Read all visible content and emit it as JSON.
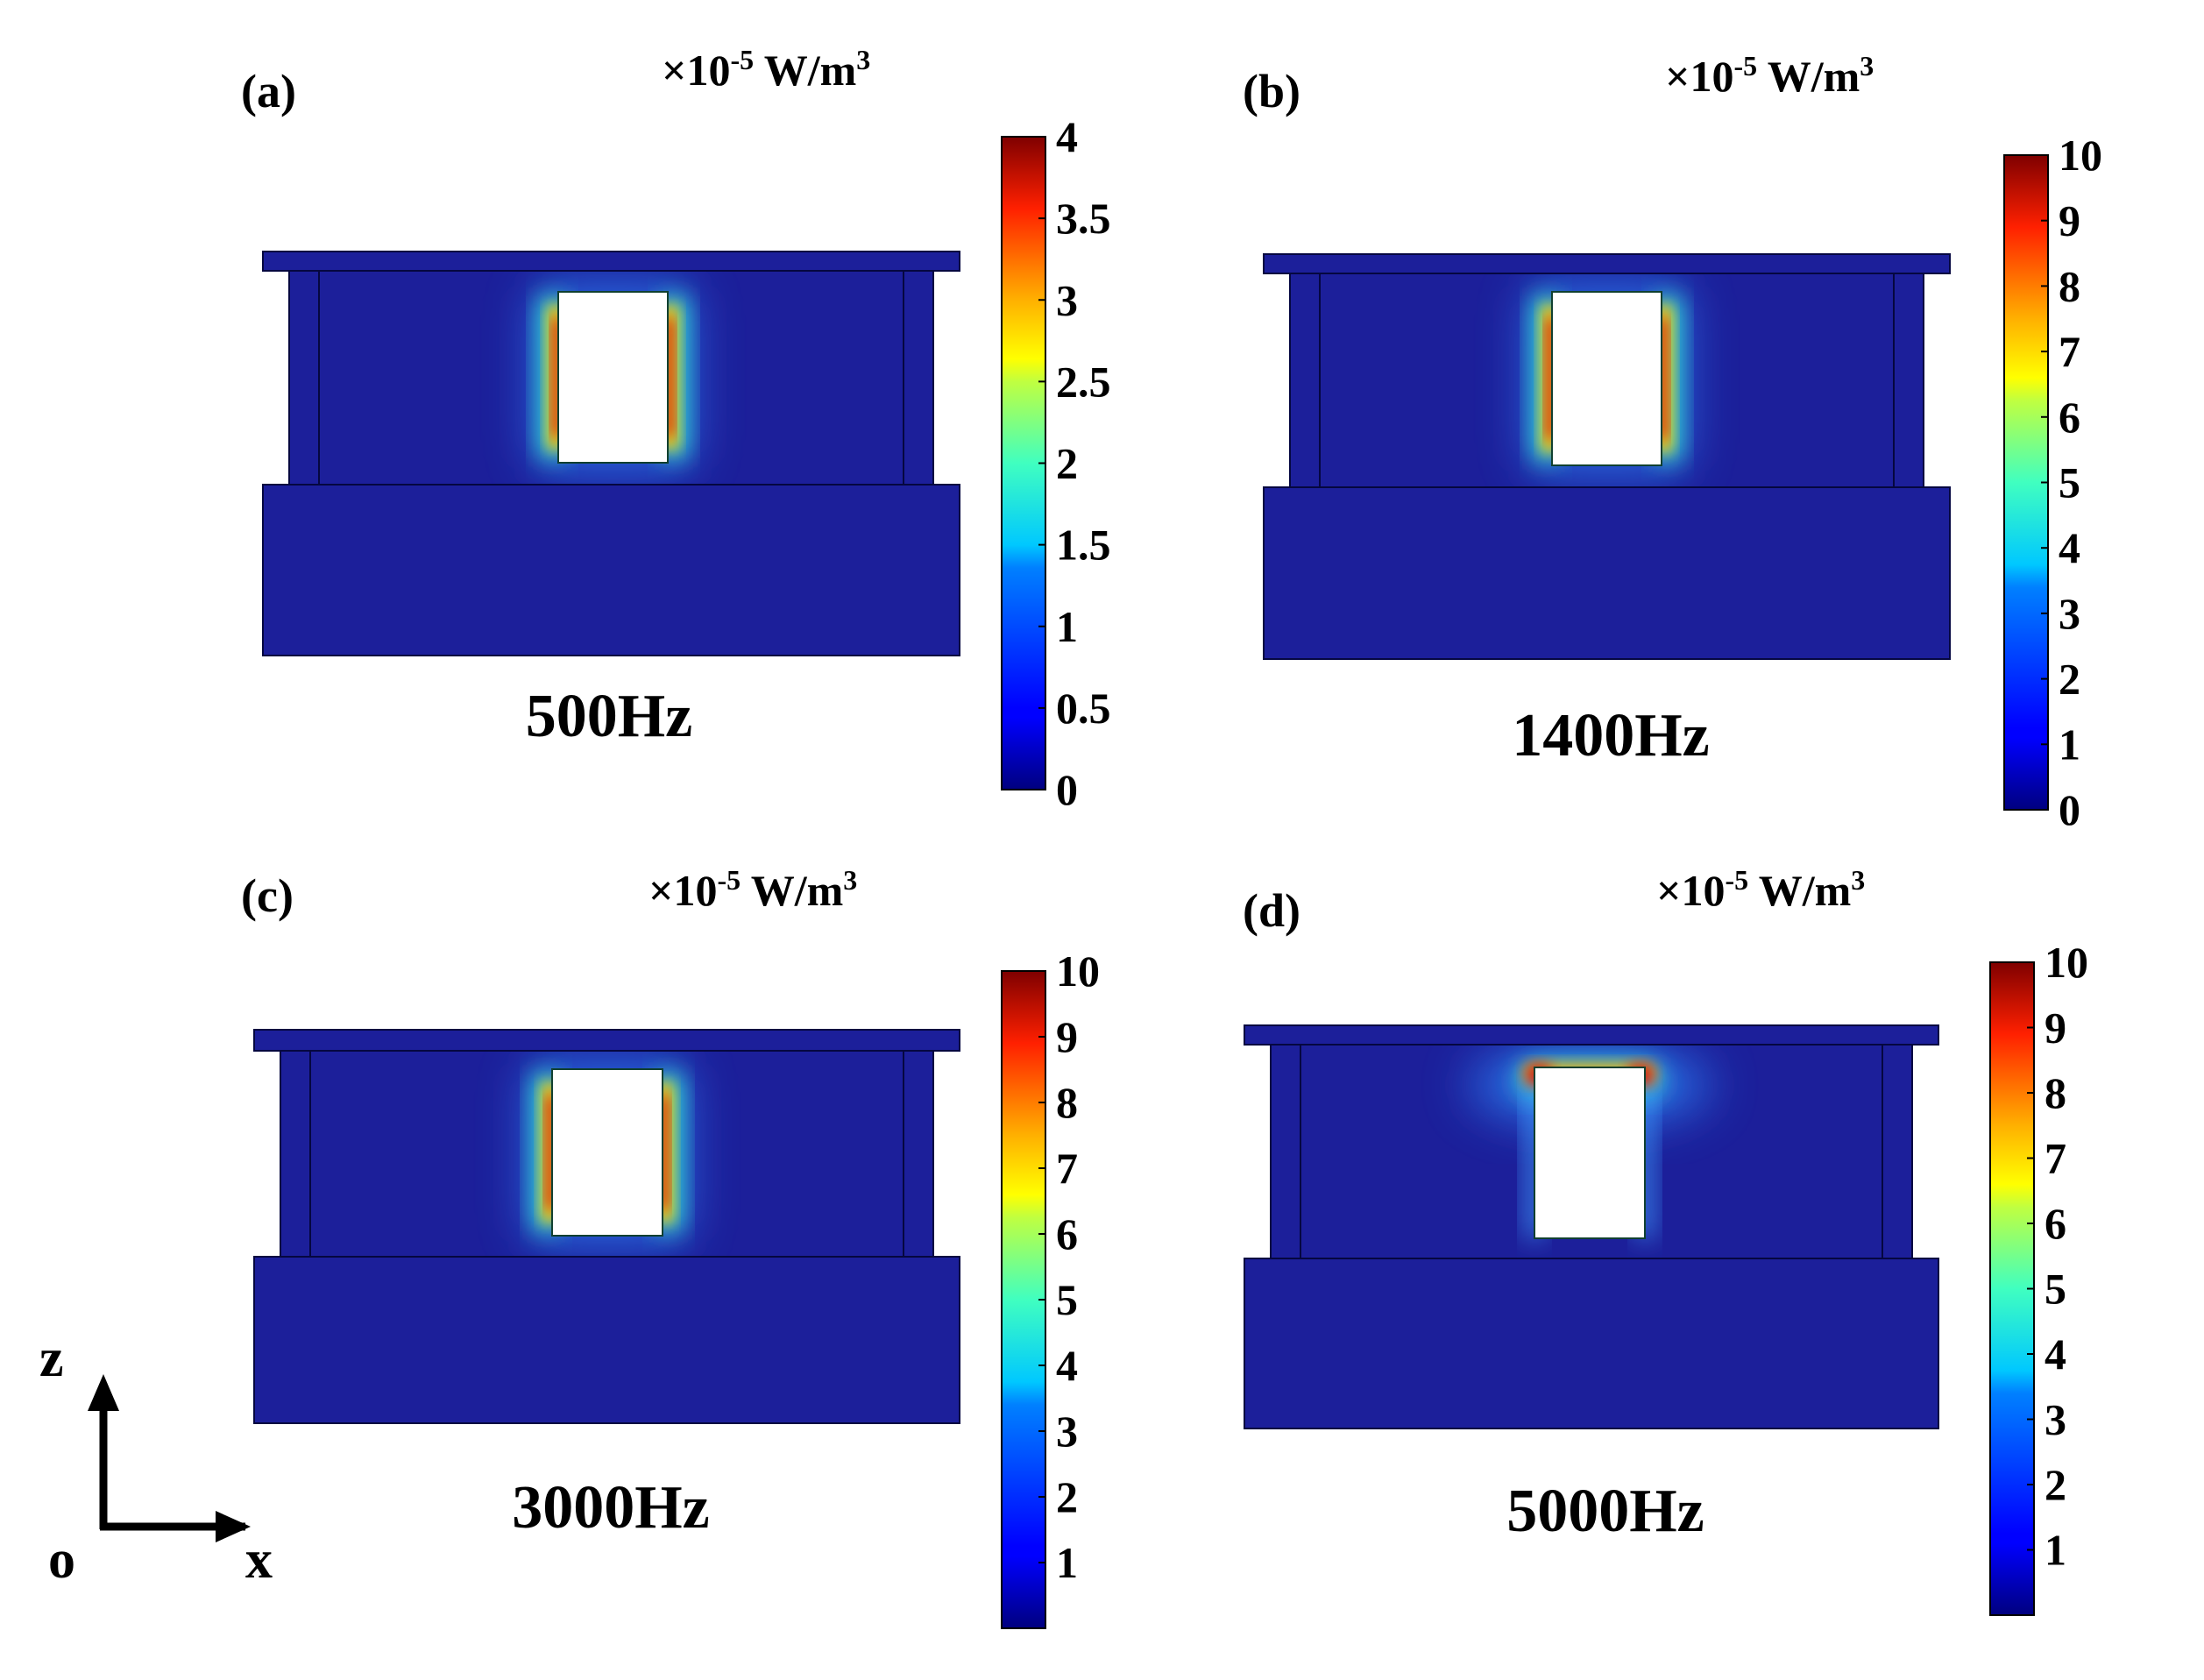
{
  "panels": [
    {
      "id": "a",
      "label": "(a)",
      "frequency": "500Hz",
      "colorbar": {
        "unit_prefix": "×10",
        "unit_exp": "-5",
        "unit_suffix": " W/m",
        "unit_sup": "3",
        "min": 0,
        "max": 4,
        "ticks": [
          "0",
          "0.5",
          "1",
          "1.5",
          "2",
          "2.5",
          "3",
          "3.5",
          "4"
        ],
        "tick_values": [
          0,
          0.5,
          1,
          1.5,
          2,
          2.5,
          3,
          3.5,
          4
        ]
      },
      "hotspot": "sides"
    },
    {
      "id": "b",
      "label": "(b)",
      "frequency": "1400Hz",
      "colorbar": {
        "unit_prefix": "×10",
        "unit_exp": "-5",
        "unit_suffix": " W/m",
        "unit_sup": "3",
        "min": 0,
        "max": 10,
        "ticks": [
          "0",
          "1",
          "2",
          "3",
          "4",
          "5",
          "6",
          "7",
          "8",
          "9",
          "10"
        ],
        "tick_values": [
          0,
          1,
          2,
          3,
          4,
          5,
          6,
          7,
          8,
          9,
          10
        ]
      },
      "hotspot": "sides"
    },
    {
      "id": "c",
      "label": "(c)",
      "frequency": "3000Hz",
      "colorbar": {
        "unit_prefix": "×10",
        "unit_exp": "-5",
        "unit_suffix": " W/m",
        "unit_sup": "3",
        "min": 0,
        "max": 10,
        "ticks": [
          "1",
          "2",
          "3",
          "4",
          "5",
          "6",
          "7",
          "8",
          "9",
          "10"
        ],
        "tick_values": [
          1,
          2,
          3,
          4,
          5,
          6,
          7,
          8,
          9,
          10
        ]
      },
      "hotspot": "sides"
    },
    {
      "id": "d",
      "label": "(d)",
      "frequency": "5000Hz",
      "colorbar": {
        "unit_prefix": "×10",
        "unit_exp": "-5",
        "unit_suffix": " W/m",
        "unit_sup": "3",
        "min": 0,
        "max": 10,
        "ticks": [
          "1",
          "2",
          "3",
          "4",
          "5",
          "6",
          "7",
          "8",
          "9",
          "10"
        ],
        "tick_values": [
          1,
          2,
          3,
          4,
          5,
          6,
          7,
          8,
          9,
          10
        ]
      },
      "hotspot": "top"
    }
  ],
  "axes_indicator": {
    "z": "z",
    "x": "x",
    "origin": "o"
  },
  "colors": {
    "field_background": "#1c1f9a",
    "outline": "#050740",
    "hole": "#ffffff"
  },
  "colormap": "jet"
}
